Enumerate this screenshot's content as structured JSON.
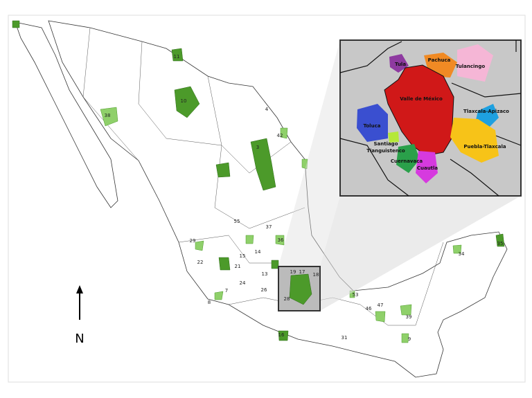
{
  "map": {
    "north_label": "N",
    "region_numbers": [
      "11",
      "10",
      "38",
      "4",
      "42",
      "3",
      "55",
      "37",
      "29",
      "36",
      "22",
      "15",
      "14",
      "21",
      "24",
      "13",
      "26",
      "7",
      "8",
      "19",
      "17",
      "18",
      "28",
      "53",
      "47",
      "46",
      "39",
      "9",
      "31",
      "34",
      "35",
      "16"
    ],
    "inset_labels": [
      "Tula",
      "Pachuca",
      "Tulancingo",
      "Valle de México",
      "Tlaxcala-Apizaco",
      "Toluca",
      "Santiago",
      "Tianguistenco",
      "Puebla-Tlaxcala",
      "Cuernavaca",
      "Cuautla"
    ]
  }
}
